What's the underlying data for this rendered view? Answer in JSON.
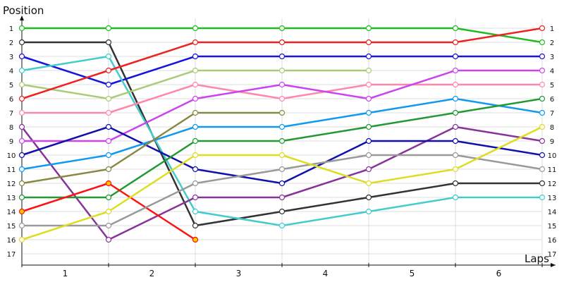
{
  "chart_data": {
    "type": "line",
    "ylabel": "Position",
    "xlabel": "Laps",
    "x_categories": [
      "1",
      "2",
      "3",
      "4",
      "5",
      "6"
    ],
    "x_points": [
      0,
      1,
      2,
      3,
      4,
      5,
      6
    ],
    "ylim": [
      1,
      17
    ],
    "y_inverted": true,
    "y_ticks": [
      1,
      2,
      3,
      4,
      5,
      6,
      7,
      8,
      9,
      10,
      11,
      12,
      13,
      14,
      15,
      16,
      17
    ],
    "grid": true,
    "series": [
      {
        "color": "#22bb22",
        "values": [
          1,
          1,
          1,
          1,
          1,
          1,
          2
        ]
      },
      {
        "color": "#333333",
        "values": [
          2,
          2,
          15,
          14,
          13,
          12,
          12
        ]
      },
      {
        "color": "#1515dd",
        "values": [
          3,
          5,
          3,
          3,
          3,
          3,
          3
        ]
      },
      {
        "color": "#44cccc",
        "values": [
          4,
          3,
          14,
          15,
          14,
          13,
          13
        ]
      },
      {
        "color": "#aacc77",
        "values": [
          5,
          6,
          4,
          4,
          4,
          null,
          null
        ]
      },
      {
        "color": "#ee2222",
        "values": [
          6,
          4,
          2,
          2,
          2,
          2,
          1
        ]
      },
      {
        "color": "#ff88aa",
        "values": [
          7,
          7,
          5,
          6,
          5,
          5,
          5
        ]
      },
      {
        "color": "#883399",
        "values": [
          8,
          16,
          13,
          13,
          11,
          8,
          9
        ]
      },
      {
        "color": "#cc44ee",
        "values": [
          9,
          9,
          6,
          5,
          6,
          4,
          4
        ]
      },
      {
        "color": "#1111aa",
        "values": [
          10,
          8,
          11,
          12,
          9,
          9,
          10
        ]
      },
      {
        "color": "#1199ee",
        "values": [
          11,
          10,
          8,
          8,
          7,
          6,
          7
        ]
      },
      {
        "color": "#888844",
        "values": [
          12,
          11,
          7,
          7,
          null,
          null,
          null
        ]
      },
      {
        "color": "#229933",
        "values": [
          13,
          13,
          9,
          9,
          8,
          7,
          6
        ]
      },
      {
        "color": "#ff1111",
        "values": [
          14,
          12,
          16,
          null,
          null,
          null,
          null
        ],
        "fills": [
          "#ffcc00",
          "#ffcc00",
          "#ffcc00"
        ]
      },
      {
        "color": "#999999",
        "values": [
          15,
          15,
          12,
          11,
          10,
          10,
          11
        ]
      },
      {
        "color": "#dddd22",
        "values": [
          16,
          14,
          10,
          10,
          12,
          11,
          8
        ]
      }
    ]
  }
}
